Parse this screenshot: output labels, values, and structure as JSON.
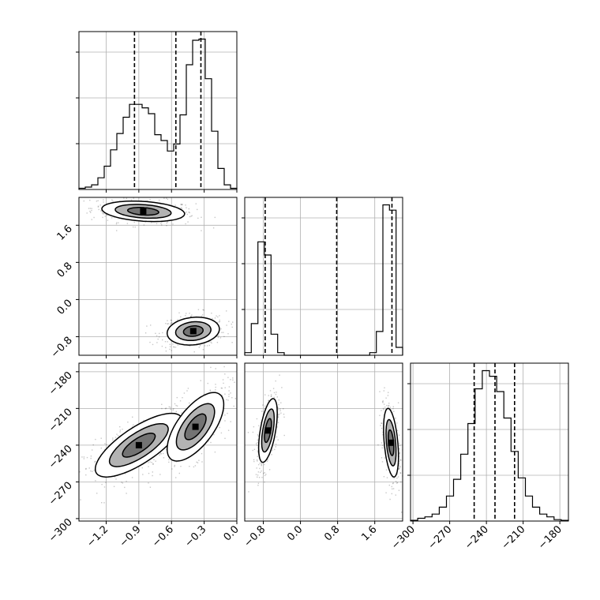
{
  "chart_data": {
    "type": "corner",
    "grid": true,
    "parameters": [
      {
        "range": [
          -1.45,
          0.0
        ],
        "ticks": [
          -1.2,
          -0.9,
          -0.6,
          -0.3,
          0.0
        ],
        "tick_labels": [
          "−1.2",
          "−0.9",
          "−0.6",
          "−0.3",
          "0.0"
        ],
        "quantiles": [
          -0.94,
          -0.56,
          -0.33
        ],
        "histogram": [
          1,
          2,
          4,
          10,
          20,
          34,
          48,
          62,
          73,
          73,
          70,
          65,
          47,
          42,
          33,
          39,
          64,
          107,
          128,
          129,
          95,
          50,
          18,
          4,
          1
        ]
      },
      {
        "range": [
          -1.2,
          2.2
        ],
        "ticks": [
          -0.8,
          0.0,
          0.8,
          1.6
        ],
        "tick_labels": [
          "−0.8",
          "0.0",
          "0.8",
          "1.6"
        ],
        "quantiles": [
          -0.76,
          0.78,
          1.97
        ],
        "histogram": [
          1,
          12,
          43,
          38,
          8,
          1,
          0,
          0,
          0,
          0,
          0,
          0,
          0,
          0,
          0,
          0,
          0,
          0,
          0,
          1,
          9,
          57,
          55,
          3
        ]
      },
      {
        "range": [
          -302,
          -173
        ],
        "ticks": [
          -300,
          -270,
          -240,
          -210,
          -180
        ],
        "tick_labels": [
          "−300",
          "−270",
          "−240",
          "−210",
          "−180"
        ],
        "quantiles": [
          -250,
          -233,
          -217
        ],
        "histogram": [
          0.5,
          2,
          3,
          5,
          10,
          18,
          30,
          48,
          70,
          95,
          108,
          104,
          93,
          74,
          50,
          31,
          18,
          10,
          5,
          3,
          1,
          0.5
        ]
      }
    ],
    "pairs": [
      {
        "x_param": 0,
        "y_param": 1,
        "modes": [
          {
            "cx": -0.86,
            "cy": 1.9,
            "sx": 0.19,
            "sy": 0.11,
            "rho": -0.25
          },
          {
            "cx": -0.4,
            "cy": -0.68,
            "sx": 0.12,
            "sy": 0.15,
            "rho": 0.15
          }
        ]
      },
      {
        "x_param": 0,
        "y_param": 2,
        "modes": [
          {
            "cx": -0.9,
            "cy": -240,
            "sx": 0.2,
            "sy": 13,
            "rho": 0.75
          },
          {
            "cx": -0.38,
            "cy": -225,
            "sx": 0.13,
            "sy": 14,
            "rho": 0.65
          }
        ]
      },
      {
        "x_param": 1,
        "y_param": 2,
        "modes": [
          {
            "cx": -0.7,
            "cy": -228,
            "sx": 0.1,
            "sy": 13,
            "rho": 0.55
          },
          {
            "cx": 1.95,
            "cy": -238,
            "sx": 0.08,
            "sy": 14,
            "rho": -0.4
          }
        ]
      }
    ]
  }
}
